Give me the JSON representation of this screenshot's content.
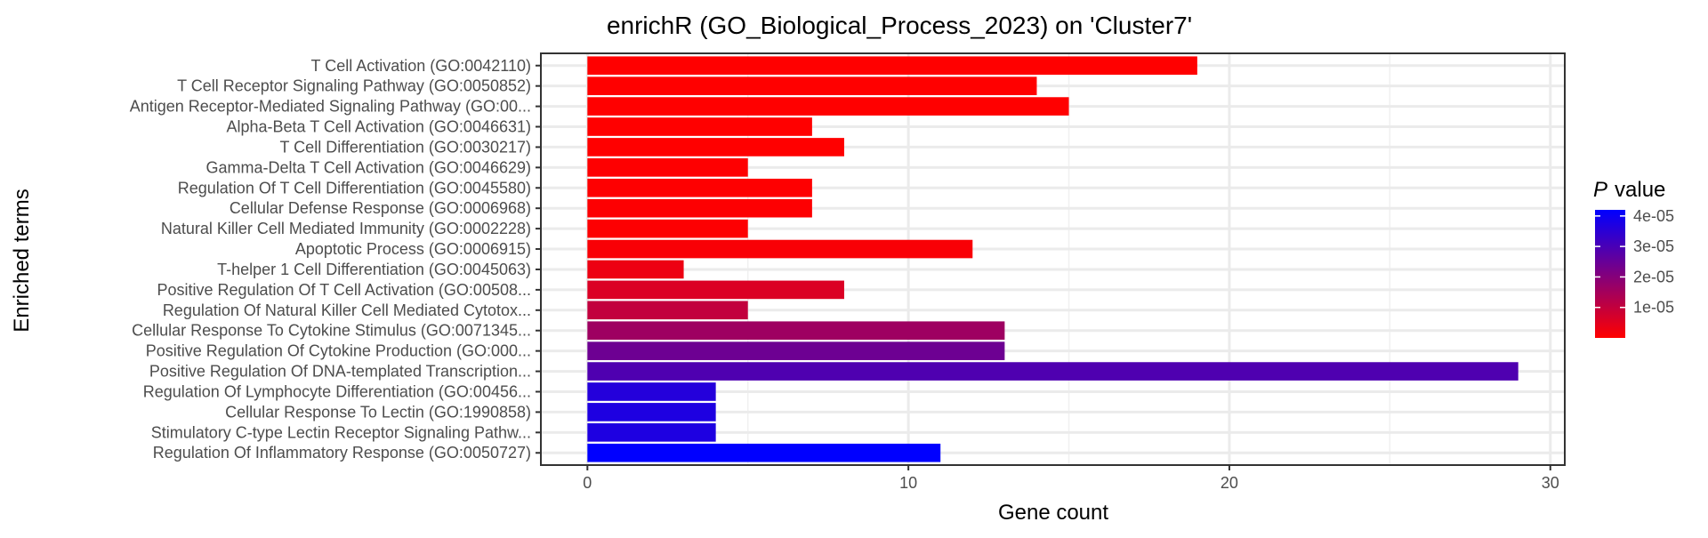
{
  "chart_data": {
    "type": "bar",
    "orientation": "horizontal",
    "title": "enrichR (GO_Biological_Process_2023) on 'Cluster7'",
    "xlabel": "Gene count",
    "ylabel": "Enriched terms",
    "xlim": [
      -1.45,
      30.45
    ],
    "x_ticks": [
      0,
      10,
      20,
      30
    ],
    "x_tick_labels": [
      "0",
      "10",
      "20",
      "30"
    ],
    "grid": true,
    "legend_position": "right",
    "legend": {
      "title_italic": "P",
      "title_rest": "value",
      "ticks": [
        4e-05,
        3e-05,
        2e-05,
        1e-05
      ],
      "tick_labels": [
        "4e-05",
        "3e-05",
        "2e-05",
        "1e-05"
      ],
      "range": [
        0,
        4.2e-05
      ],
      "low_color": "#ff0000",
      "high_color": "#0000ff"
    },
    "categories": [
      "T Cell Activation (GO:0042110)",
      "T Cell Receptor Signaling Pathway (GO:0050852)",
      "Antigen Receptor-Mediated Signaling Pathway (GO:00...",
      "Alpha-Beta T Cell Activation (GO:0046631)",
      "T Cell Differentiation (GO:0030217)",
      "Gamma-Delta T Cell Activation (GO:0046629)",
      "Regulation Of T Cell Differentiation (GO:0045580)",
      "Cellular Defense Response (GO:0006968)",
      "Natural Killer Cell Mediated Immunity (GO:0002228)",
      "Apoptotic Process (GO:0006915)",
      "T-helper 1 Cell Differentiation (GO:0045063)",
      "Positive Regulation Of T Cell Activation (GO:00508...",
      "Regulation Of Natural Killer Cell Mediated Cytotox...",
      "Cellular Response To Cytokine Stimulus (GO:0071345...",
      "Positive Regulation Of Cytokine Production (GO:000...",
      "Positive Regulation Of DNA-templated Transcription...",
      "Regulation Of Lymphocyte Differentiation (GO:00456...",
      "Cellular Response To Lectin (GO:1990858)",
      "Stimulatory C-type Lectin Receptor Signaling Pathw...",
      "Regulation Of Inflammatory Response (GO:0050727)"
    ],
    "values": [
      19,
      14,
      15,
      7,
      8,
      5,
      7,
      7,
      5,
      12,
      3,
      8,
      5,
      13,
      13,
      29,
      4,
      4,
      4,
      11
    ],
    "p_values": [
      1e-10,
      1e-09,
      3e-09,
      2e-08,
      4e-08,
      1.5e-07,
      2e-07,
      2.5e-07,
      4e-07,
      1e-06,
      3e-06,
      6e-06,
      1e-05,
      1.6e-05,
      2.4e-05,
      2.9e-05,
      3.6e-05,
      3.7e-05,
      3.7e-05,
      4.2e-05
    ]
  }
}
